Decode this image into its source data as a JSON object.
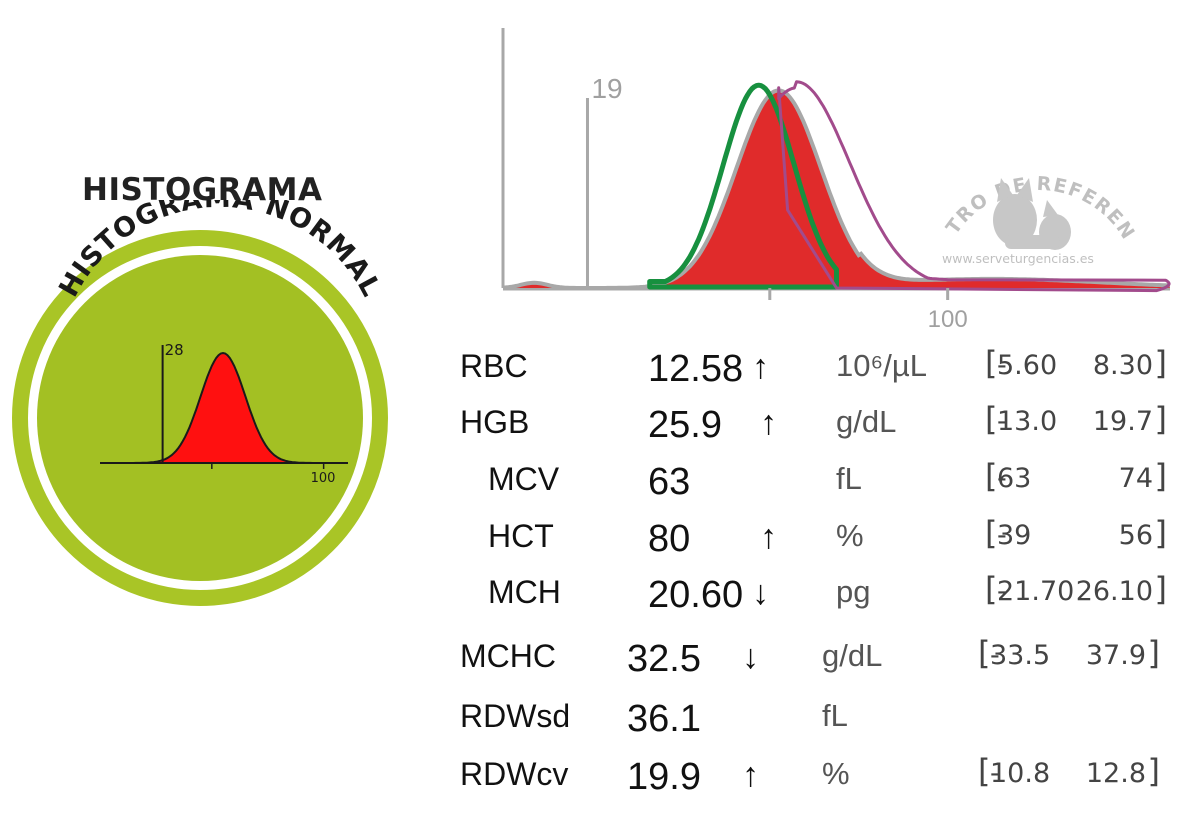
{
  "heading": "HISTOGRAMA",
  "reference_badge": {
    "arc_text": "HISTOGRAMA NORMAL",
    "colors": {
      "ring": "#a9c526",
      "fill": "#a3c023",
      "curve": "#ff1010"
    },
    "chart_data": {
      "type": "area",
      "title": "",
      "threshold_label": "28",
      "threshold": 28,
      "x_tick_label": "100",
      "xlim": [
        0,
        110
      ],
      "series": [
        {
          "name": "normal distribution",
          "mean": 55,
          "sd": 10,
          "peak": 1.0
        }
      ]
    }
  },
  "histogram": {
    "colors": {
      "patient_fill": "#e02b2b",
      "patient_outline": "#a8a8a8",
      "normal_overlay": "#17903f",
      "shifted_overlay": "#a24b8c",
      "axis": "#a8a8a8"
    },
    "chart_data": {
      "type": "area",
      "title": "",
      "xlim": [
        0,
        150
      ],
      "ylim": [
        0,
        1
      ],
      "threshold_label": "19",
      "threshold": 19,
      "x_tick_labels": [
        "",
        "100"
      ],
      "x_ticks": [
        60,
        100
      ],
      "series": [
        {
          "name": "RBC volume distribution",
          "mean": 62,
          "sd": 9.5,
          "peak": 0.76
        },
        {
          "name": "normal reference",
          "mean": 57.5,
          "sd": 8,
          "peak": 0.78,
          "base_from": 33,
          "base_to": 75
        },
        {
          "name": "shifted population",
          "mean": 66,
          "sd": 12,
          "peak": 0.77,
          "base_to": 149
        }
      ]
    },
    "watermark": {
      "arc_text": "CENTRO DE REFERENCIA",
      "url": "www.serveturgencias.es"
    }
  },
  "results": [
    {
      "name": "RBC",
      "value": "12.58",
      "flag": "↑",
      "unit": "10⁶/µL",
      "low": "5.60",
      "high": "8.30"
    },
    {
      "name": "HGB",
      "value": "25.9",
      "flag": "↑",
      "unit": "g/dL",
      "low": "13.0",
      "high": "19.7"
    },
    {
      "name": "MCV",
      "value": "63",
      "flag": "",
      "unit": "fL",
      "low": "63",
      "high": "74"
    },
    {
      "name": "HCT",
      "value": "80",
      "flag": "↑",
      "unit": "%",
      "low": "39",
      "high": "56"
    },
    {
      "name": "MCH",
      "value": "20.60",
      "flag": "↓",
      "unit": "pg",
      "low": "21.70",
      "high": "26.10"
    },
    {
      "name": "MCHC",
      "value": "32.5",
      "flag": "↓",
      "unit": "g/dL",
      "low": "33.5",
      "high": "37.9"
    },
    {
      "name": "RDWsd",
      "value": "36.1",
      "flag": "",
      "unit": "fL",
      "low": "",
      "high": ""
    },
    {
      "name": "RDWcv",
      "value": "19.9",
      "flag": "↑",
      "unit": "%",
      "low": "10.8",
      "high": "12.8"
    }
  ]
}
